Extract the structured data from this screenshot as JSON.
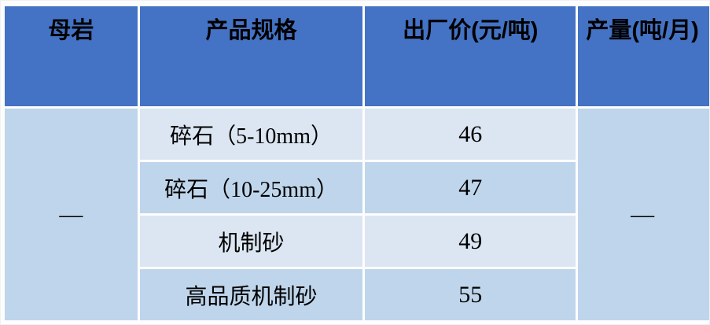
{
  "table": {
    "headers": [
      {
        "label": "母岩"
      },
      {
        "label": "产品规格"
      },
      {
        "label": "出厂价(元/吨)"
      },
      {
        "label": "产量(吨/月)"
      }
    ],
    "rock_value": "—",
    "output_value": "—",
    "rows": [
      {
        "spec": "碎石（5-10mm）",
        "price": "46"
      },
      {
        "spec": "碎石（10-25mm）",
        "price": "47"
      },
      {
        "spec": "机制砂",
        "price": "49"
      },
      {
        "spec": "高品质机制砂",
        "price": "55"
      }
    ],
    "colors": {
      "header_bg": "#4472C4",
      "row_light": "#DCE6F2",
      "row_medium": "#BFD5EB",
      "text": "#000000"
    }
  }
}
